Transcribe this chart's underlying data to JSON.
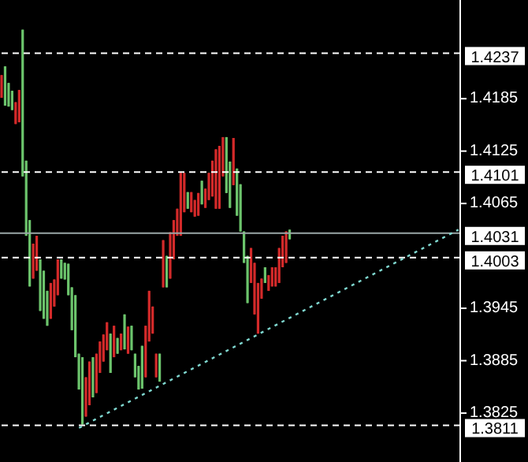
{
  "chart_data": {
    "type": "candlestick",
    "categories": [
      null,
      null,
      null,
      null,
      null,
      null,
      null,
      null,
      null,
      null,
      null,
      null,
      null,
      null,
      null,
      null,
      null,
      null,
      null,
      null,
      null,
      null,
      null,
      null,
      null,
      null,
      null,
      null,
      null,
      null,
      null,
      null,
      null,
      null,
      null,
      null,
      null,
      null,
      null,
      null,
      null,
      null,
      null,
      null,
      null,
      null,
      null,
      null,
      null,
      null,
      null,
      null,
      null,
      null,
      null,
      null,
      null,
      null,
      null,
      null,
      null,
      null,
      null,
      null,
      null,
      null,
      null,
      null,
      null,
      null,
      null,
      null,
      null,
      null,
      null,
      null,
      null,
      null,
      null,
      null,
      null,
      null,
      null,
      null,
      null,
      null,
      null,
      null,
      null,
      null,
      null,
      null,
      null,
      null,
      null,
      null,
      null,
      null,
      null,
      null,
      null,
      null,
      null,
      null,
      null,
      null,
      null,
      null,
      null,
      null,
      null,
      null,
      null,
      null,
      null,
      null,
      null,
      null,
      null,
      null,
      null,
      null,
      null,
      null,
      null,
      null,
      null,
      null,
      null,
      null,
      null
    ],
    "ohlc": [
      [
        1.4212,
        1.4212,
        1.4186,
        1.4186
      ],
      [
        1.4177,
        1.4222,
        1.4177,
        1.4222
      ],
      [
        1.4176,
        1.4203,
        1.4176,
        1.4203
      ],
      [
        1.4172,
        1.4194,
        1.4172,
        1.4194
      ],
      [
        1.4181,
        1.4181,
        1.4156,
        1.4156
      ],
      [
        1.4195,
        1.4195,
        1.4158,
        1.4158
      ],
      [
        1.4096,
        1.4264,
        1.4096,
        1.4264
      ],
      [
        1.4028,
        1.4114,
        1.4028,
        1.4114
      ],
      [
        1.397,
        1.4046,
        1.397,
        1.4046
      ],
      [
        1.4019,
        1.4019,
        1.3979,
        1.3979
      ],
      [
        1.4028,
        1.4028,
        1.3988,
        1.3988
      ],
      [
        1.3942,
        1.4001,
        1.3942,
        1.4001
      ],
      [
        1.3933,
        1.3988,
        1.3933,
        1.3988
      ],
      [
        1.3925,
        1.3965,
        1.3925,
        1.3965
      ],
      [
        1.3974,
        1.3974,
        1.3933,
        1.3933
      ],
      [
        1.3978,
        1.3978,
        1.3947,
        1.3947
      ],
      [
        1.4001,
        1.4001,
        1.396,
        1.396
      ],
      [
        1.3979,
        1.4001,
        1.3979,
        1.4001
      ],
      [
        1.3978,
        1.3997,
        1.3978,
        1.3997
      ],
      [
        1.396,
        1.3996,
        1.396,
        1.3996
      ],
      [
        1.392,
        1.3969,
        1.392,
        1.3969
      ],
      [
        1.3889,
        1.396,
        1.3889,
        1.396
      ],
      [
        1.3852,
        1.3893,
        1.3852,
        1.3893
      ],
      [
        1.3812,
        1.3889,
        1.3812,
        1.3889
      ],
      [
        1.3866,
        1.3866,
        1.3821,
        1.3821
      ],
      [
        1.3884,
        1.3884,
        1.3834,
        1.3834
      ],
      [
        1.3843,
        1.3889,
        1.3843,
        1.3889
      ],
      [
        1.3893,
        1.3893,
        1.3848,
        1.3848
      ],
      [
        1.3907,
        1.3907,
        1.3871,
        1.3871
      ],
      [
        1.3915,
        1.3915,
        1.3884,
        1.3884
      ],
      [
        1.3929,
        1.3929,
        1.3897,
        1.3897
      ],
      [
        1.3871,
        1.3916,
        1.3871,
        1.3916
      ],
      [
        1.3925,
        1.3925,
        1.3889,
        1.3889
      ],
      [
        1.3893,
        1.3911,
        1.3893,
        1.3911
      ],
      [
        1.3916,
        1.3916,
        1.3897,
        1.3897
      ],
      [
        1.3898,
        1.3938,
        1.3898,
        1.3938
      ],
      [
        1.3924,
        1.3924,
        1.3893,
        1.3893
      ],
      [
        1.3897,
        1.3925,
        1.3897,
        1.3925
      ],
      [
        1.3866,
        1.3893,
        1.3866,
        1.3893
      ],
      [
        1.3852,
        1.3879,
        1.3852,
        1.3879
      ],
      [
        1.3853,
        1.3902,
        1.3853,
        1.3902
      ],
      [
        1.3925,
        1.3925,
        1.3866,
        1.3866
      ],
      [
        1.3965,
        1.3965,
        1.3907,
        1.3907
      ],
      [
        1.3947,
        1.3947,
        1.3916,
        1.3916
      ],
      [
        1.3893,
        1.3893,
        1.3866,
        1.3866
      ],
      [
        1.3861,
        1.3893,
        1.3861,
        1.3893
      ],
      [
        1.4023,
        1.4023,
        1.3969,
        1.3969
      ],
      [
        1.3969,
        1.4005,
        1.3969,
        1.4005
      ],
      [
        1.4032,
        1.4032,
        1.3979,
        1.3979
      ],
      [
        1.4046,
        1.4046,
        1.4001,
        1.4001
      ],
      [
        1.4059,
        1.4059,
        1.4028,
        1.4028
      ],
      [
        1.41,
        1.41,
        1.4028,
        1.4028
      ],
      [
        1.41,
        1.41,
        1.4055,
        1.4055
      ],
      [
        1.4059,
        1.4078,
        1.4059,
        1.4078
      ],
      [
        1.4078,
        1.4078,
        1.4055,
        1.4055
      ],
      [
        1.4069,
        1.4069,
        1.405,
        1.405
      ],
      [
        1.4077,
        1.4077,
        1.4051,
        1.4051
      ],
      [
        1.4064,
        1.4091,
        1.4064,
        1.4091
      ],
      [
        1.4082,
        1.4082,
        1.406,
        1.406
      ],
      [
        1.41,
        1.41,
        1.4069,
        1.4069
      ],
      [
        1.4114,
        1.4114,
        1.4073,
        1.4073
      ],
      [
        1.4127,
        1.4127,
        1.4059,
        1.4059
      ],
      [
        1.4131,
        1.4131,
        1.4059,
        1.4059
      ],
      [
        1.4141,
        1.4141,
        1.4096,
        1.4096
      ],
      [
        1.4077,
        1.4141,
        1.4077,
        1.4141
      ],
      [
        1.406,
        1.4113,
        1.406,
        1.4113
      ],
      [
        1.414,
        1.414,
        1.4086,
        1.4086
      ],
      [
        1.4051,
        1.4105,
        1.4051,
        1.4105
      ],
      [
        1.4033,
        1.4087,
        1.4033,
        1.4087
      ],
      [
        1.3997,
        1.4033,
        1.3997,
        1.4033
      ],
      [
        1.3951,
        1.4005,
        1.3951,
        1.4005
      ],
      [
        1.4014,
        1.4014,
        1.3974,
        1.3974
      ],
      [
        1.3997,
        1.3997,
        1.3938,
        1.3938
      ],
      [
        1.3974,
        1.3974,
        1.3916,
        1.3916
      ],
      [
        1.3979,
        1.3979,
        1.3956,
        1.3956
      ],
      [
        1.3974,
        1.3992,
        1.3974,
        1.3992
      ],
      [
        1.3983,
        1.3983,
        1.3965,
        1.3965
      ],
      [
        1.3992,
        1.3992,
        1.397,
        1.397
      ],
      [
        1.3992,
        1.3992,
        1.397,
        1.397
      ],
      [
        1.4014,
        1.4014,
        1.3974,
        1.3974
      ],
      [
        1.4028,
        1.4028,
        1.3992,
        1.3992
      ],
      [
        1.4033,
        1.4033,
        1.3997,
        1.3997
      ],
      [
        1.4024,
        1.4035,
        1.4024,
        1.4035
      ],
      null,
      null,
      null,
      null,
      null,
      null,
      null,
      null,
      null,
      null,
      null,
      null,
      null,
      null,
      null,
      null,
      null,
      null,
      null,
      null,
      null,
      null,
      null,
      null,
      null,
      null,
      null,
      null,
      null,
      null,
      null,
      null,
      null,
      null,
      null,
      null,
      null,
      null,
      null,
      null,
      null,
      null,
      null,
      null,
      null,
      null,
      null,
      null
    ],
    "colors": [
      "#d42a2a",
      "#6cc46c",
      "#6cc46c",
      "#6cc46c",
      "#d42a2a",
      "#d42a2a",
      "#6cc46c",
      "#6cc46c",
      "#6cc46c",
      "#d42a2a",
      "#d42a2a",
      "#6cc46c",
      "#6cc46c",
      "#6cc46c",
      "#d42a2a",
      "#d42a2a",
      "#d42a2a",
      "#6cc46c",
      "#6cc46c",
      "#6cc46c",
      "#6cc46c",
      "#6cc46c",
      "#6cc46c",
      "#6cc46c",
      "#d42a2a",
      "#d42a2a",
      "#6cc46c",
      "#d42a2a",
      "#d42a2a",
      "#d42a2a",
      "#d42a2a",
      "#6cc46c",
      "#d42a2a",
      "#6cc46c",
      "#d42a2a",
      "#6cc46c",
      "#d42a2a",
      "#6cc46c",
      "#6cc46c",
      "#6cc46c",
      "#6cc46c",
      "#d42a2a",
      "#d42a2a",
      "#d42a2a",
      "#d42a2a",
      "#6cc46c",
      "#d42a2a",
      "#6cc46c",
      "#d42a2a",
      "#d42a2a",
      "#d42a2a",
      "#d42a2a",
      "#d42a2a",
      "#6cc46c",
      "#d42a2a",
      "#d42a2a",
      "#d42a2a",
      "#6cc46c",
      "#d42a2a",
      "#d42a2a",
      "#d42a2a",
      "#d42a2a",
      "#d42a2a",
      "#d42a2a",
      "#6cc46c",
      "#6cc46c",
      "#d42a2a",
      "#6cc46c",
      "#6cc46c",
      "#6cc46c",
      "#6cc46c",
      "#d42a2a",
      "#d42a2a",
      "#d42a2a",
      "#d42a2a",
      "#6cc46c",
      "#d42a2a",
      "#d42a2a",
      "#d42a2a",
      "#d42a2a",
      "#d42a2a",
      "#d42a2a",
      "#6cc46c",
      null,
      null,
      null,
      null,
      null,
      null,
      null,
      null,
      null,
      null,
      null,
      null,
      null,
      null,
      null,
      null,
      null,
      null,
      null,
      null,
      null,
      null,
      null,
      null,
      null,
      null,
      null,
      null,
      null,
      null,
      null,
      null,
      null,
      null,
      null,
      null,
      null,
      null,
      null,
      null,
      null,
      null,
      null,
      null,
      null,
      null,
      null,
      null
    ],
    "series": [
      {
        "type": "line",
        "color": "#7fd8d0",
        "line_style": "dotted",
        "values": [
          null,
          null,
          null,
          null,
          null,
          null,
          null,
          null,
          null,
          null,
          null,
          null,
          null,
          null,
          null,
          null,
          null,
          null,
          null,
          null,
          null,
          null,
          1.3808,
          null,
          null,
          null,
          null,
          null,
          null,
          null,
          null,
          null,
          null,
          null,
          null,
          null,
          null,
          null,
          null,
          null,
          null,
          null,
          null,
          null,
          null,
          null,
          null,
          null,
          null,
          null,
          null,
          null,
          null,
          null,
          null,
          null,
          null,
          null,
          null,
          null,
          null,
          null,
          null,
          null,
          null,
          null,
          null,
          null,
          null,
          null,
          null,
          null,
          null,
          null,
          null,
          null,
          null,
          null,
          null,
          null,
          null,
          null,
          null,
          null,
          null,
          null,
          null,
          null,
          null,
          null,
          null,
          null,
          null,
          null,
          null,
          null,
          null,
          null,
          null,
          null,
          null,
          null,
          null,
          null,
          null,
          null,
          null,
          null,
          null,
          null,
          null,
          null,
          null,
          null,
          null,
          null,
          null,
          null,
          null,
          null,
          null,
          null,
          null,
          null,
          null,
          null,
          null,
          null,
          null,
          null,
          1.4035
        ]
      }
    ],
    "ylim": [
      1.3769,
      1.4298
    ],
    "yticks": [
      1.3825,
      1.3885,
      1.3945,
      1.4065,
      1.4125,
      1.4185
    ],
    "tick_labels": "y",
    "grid": false,
    "legend": false,
    "ref_lines": [
      {
        "axis": "y",
        "value": 1.4237,
        "label": "1.4237",
        "color": "#ffffff",
        "line_style": "dashed"
      },
      {
        "axis": "y",
        "value": 1.4101,
        "label": "1.4101",
        "color": "#ffffff",
        "line_style": "dashed"
      },
      {
        "axis": "y",
        "value": 1.4031,
        "label": "1.4031",
        "color": "#9aa6a6",
        "line_style": "solid"
      },
      {
        "axis": "y",
        "value": 1.4003,
        "label": "1.4003",
        "color": "#ffffff",
        "line_style": "dashed"
      },
      {
        "axis": "y",
        "value": 1.3811,
        "label": "1.3811",
        "color": "#ffffff",
        "line_style": "dashed"
      }
    ]
  }
}
